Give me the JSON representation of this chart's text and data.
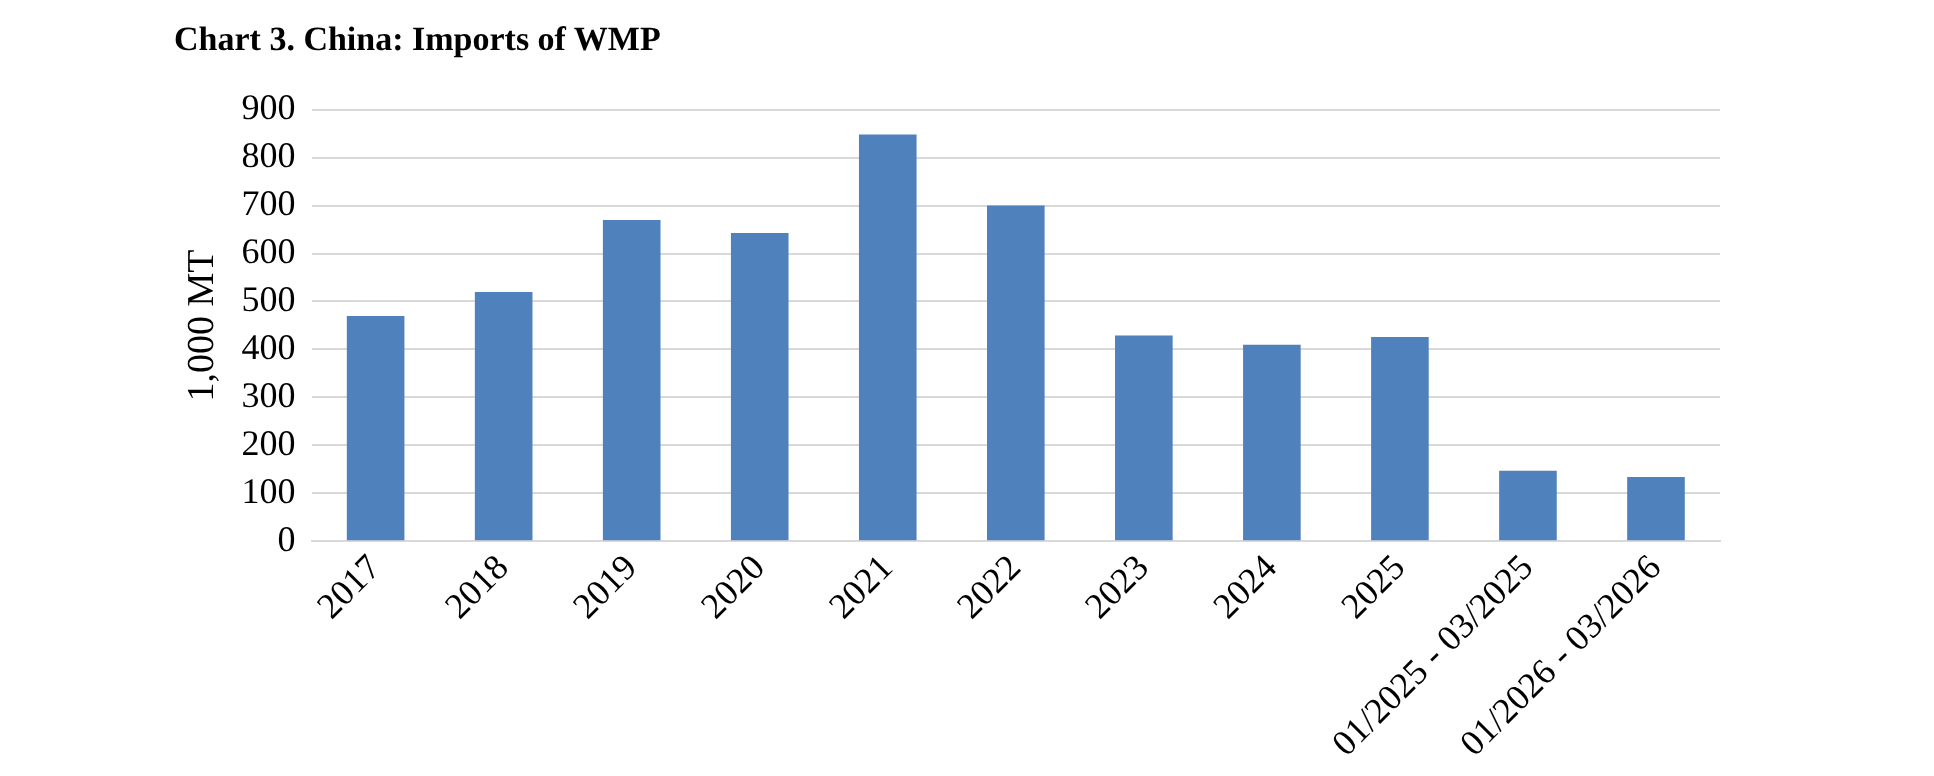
{
  "chart_data": {
    "type": "bar",
    "title": "Chart 3. China: Imports of WMP",
    "ylabel": "1,000 MT",
    "categories": [
      "2017",
      "2018",
      "2019",
      "2020",
      "2021",
      "2022",
      "2023",
      "2024",
      "2025",
      "01/2025 - 03/2025",
      "01/2026 - 03/2026"
    ],
    "values": [
      470,
      520,
      670,
      643,
      848,
      700,
      429,
      410,
      426,
      147,
      134
    ],
    "color": "#4f81bd",
    "ylim": [
      0,
      900
    ],
    "yticks": [
      0,
      100,
      200,
      300,
      400,
      500,
      600,
      700,
      800,
      900
    ],
    "grid": "y"
  }
}
